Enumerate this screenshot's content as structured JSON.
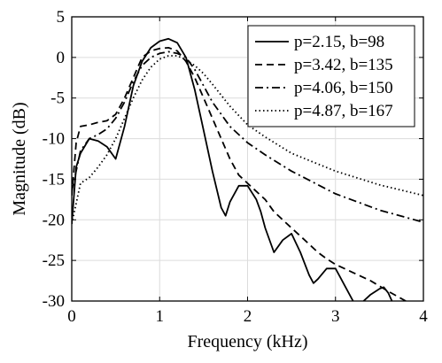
{
  "chart_data": {
    "type": "line",
    "title": "",
    "xlabel": "Frequency (kHz)",
    "ylabel": "Magnitude (dB)",
    "xlim": [
      0,
      4
    ],
    "ylim": [
      -30,
      5
    ],
    "xticks": [
      0,
      1,
      2,
      3,
      4
    ],
    "yticks": [
      5,
      0,
      -5,
      -10,
      -15,
      -20,
      -25,
      -30
    ],
    "grid": true,
    "legend_position": "top-right",
    "series": [
      {
        "name": "p=2.15, b=98",
        "line_style": "solid",
        "color": "#000000",
        "x": [
          0,
          0.05,
          0.1,
          0.2,
          0.3,
          0.4,
          0.5,
          0.6,
          0.7,
          0.8,
          0.9,
          1.0,
          1.1,
          1.2,
          1.3,
          1.4,
          1.5,
          1.6,
          1.7,
          1.75,
          1.8,
          1.9,
          2.0,
          2.1,
          2.15,
          2.2,
          2.3,
          2.4,
          2.5,
          2.6,
          2.7,
          2.75,
          2.8,
          2.9,
          3.0,
          3.1,
          3.2,
          3.25,
          3.3,
          3.4,
          3.5,
          3.55,
          3.6,
          3.65
        ],
        "y": [
          -20.5,
          -13.5,
          -11.8,
          -10.0,
          -10.3,
          -11.0,
          -12.5,
          -8.5,
          -3.5,
          -0.5,
          1.2,
          2.0,
          2.3,
          1.8,
          0.0,
          -4.0,
          -9.0,
          -14.0,
          -18.5,
          -19.5,
          -17.8,
          -15.8,
          -15.8,
          -17.5,
          -19.0,
          -21.0,
          -24.0,
          -22.5,
          -21.7,
          -24.0,
          -26.8,
          -27.8,
          -27.3,
          -26.0,
          -26.0,
          -28.0,
          -30.0,
          -30.5,
          -30.2,
          -29.2,
          -28.5,
          -28.3,
          -29.0,
          -30.2
        ]
      },
      {
        "name": "p=3.42, b=135",
        "line_style": "dashed",
        "color": "#000000",
        "x": [
          0,
          0.05,
          0.1,
          0.2,
          0.3,
          0.4,
          0.5,
          0.6,
          0.7,
          0.8,
          0.9,
          1.0,
          1.1,
          1.2,
          1.3,
          1.4,
          1.5,
          1.6,
          1.7,
          1.8,
          1.9,
          2.0,
          2.1,
          2.2,
          2.3,
          2.4,
          2.5,
          2.6,
          2.7,
          2.8,
          2.9,
          3.0,
          3.2,
          3.4,
          3.6,
          3.8
        ],
        "y": [
          -17.0,
          -10.5,
          -8.5,
          -8.3,
          -8.0,
          -7.8,
          -7.0,
          -5.0,
          -2.5,
          0.0,
          0.8,
          1.1,
          1.2,
          0.8,
          -0.5,
          -2.5,
          -5.0,
          -7.5,
          -10.0,
          -12.5,
          -14.5,
          -15.5,
          -16.5,
          -17.5,
          -19.0,
          -20.0,
          -21.0,
          -22.0,
          -23.0,
          -24.0,
          -24.8,
          -25.5,
          -26.5,
          -27.5,
          -28.8,
          -30.0
        ]
      },
      {
        "name": "p=4.06, b=150",
        "line_style": "dashdot",
        "color": "#000000",
        "x": [
          0,
          0.1,
          0.2,
          0.3,
          0.4,
          0.5,
          0.6,
          0.7,
          0.8,
          0.9,
          1.0,
          1.1,
          1.2,
          1.3,
          1.4,
          1.5,
          1.6,
          1.8,
          2.0,
          2.2,
          2.5,
          3.0,
          3.5,
          4.0
        ],
        "y": [
          -16.5,
          -11.5,
          -10.0,
          -9.5,
          -8.8,
          -7.5,
          -5.5,
          -3.0,
          -1.0,
          0.0,
          0.5,
          0.7,
          0.5,
          0.0,
          -1.5,
          -3.5,
          -5.5,
          -8.5,
          -10.5,
          -12.0,
          -14.0,
          -16.8,
          -18.8,
          -20.3
        ]
      },
      {
        "name": "p=4.87, b=167",
        "line_style": "dotted",
        "color": "#000000",
        "x": [
          0,
          0.1,
          0.2,
          0.3,
          0.4,
          0.5,
          0.6,
          0.7,
          0.8,
          0.9,
          1.0,
          1.1,
          1.2,
          1.3,
          1.4,
          1.5,
          1.6,
          1.8,
          2.0,
          2.2,
          2.5,
          3.0,
          3.5,
          4.0
        ],
        "y": [
          -20.5,
          -15.5,
          -14.8,
          -13.5,
          -12.0,
          -10.0,
          -7.5,
          -5.0,
          -2.8,
          -1.2,
          -0.2,
          0.2,
          0.2,
          -0.3,
          -1.0,
          -2.0,
          -3.3,
          -6.0,
          -8.3,
          -9.8,
          -11.8,
          -14.0,
          -15.7,
          -17.0
        ]
      }
    ]
  }
}
